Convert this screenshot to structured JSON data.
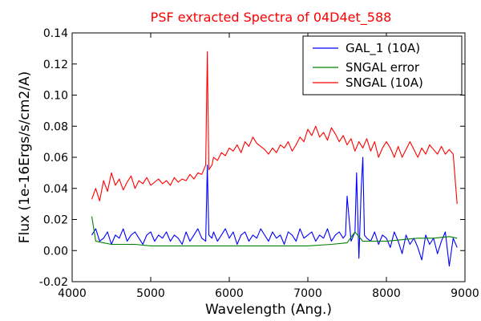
{
  "chart_data": {
    "type": "line",
    "title": "PSF extracted Spectra of 04D4et_588",
    "xlabel": "Wavelength (Ang.)",
    "ylabel": "Flux (1e-16Ergs/s/cm2/A)",
    "xlim": [
      4000,
      9000
    ],
    "ylim": [
      -0.02,
      0.14
    ],
    "xticks": [
      4000,
      5000,
      6000,
      7000,
      8000,
      9000
    ],
    "yticks": [
      -0.02,
      0.0,
      0.02,
      0.04,
      0.06,
      0.08,
      0.1,
      0.12,
      0.14
    ],
    "ytick_labels": [
      "-0.02",
      "0.00",
      "0.02",
      "0.04",
      "0.06",
      "0.08",
      "0.10",
      "0.12",
      "0.14"
    ],
    "legend_position": "top-right",
    "grid": false,
    "colors": {
      "title": "#ff0000",
      "frame": "#000000"
    },
    "series": [
      {
        "name": "GAL_1 (10A)",
        "color": "#0000ff",
        "x": [
          4250,
          4300,
          4350,
          4400,
          4450,
          4500,
          4550,
          4600,
          4650,
          4700,
          4750,
          4800,
          4850,
          4900,
          4950,
          5000,
          5050,
          5100,
          5150,
          5200,
          5250,
          5300,
          5350,
          5400,
          5450,
          5500,
          5550,
          5600,
          5650,
          5700,
          5720,
          5740,
          5780,
          5800,
          5850,
          5900,
          5950,
          6000,
          6050,
          6100,
          6150,
          6200,
          6250,
          6300,
          6350,
          6400,
          6450,
          6500,
          6550,
          6600,
          6650,
          6700,
          6750,
          6800,
          6850,
          6900,
          6950,
          7000,
          7050,
          7100,
          7150,
          7200,
          7250,
          7300,
          7350,
          7400,
          7450,
          7480,
          7500,
          7550,
          7600,
          7620,
          7650,
          7680,
          7700,
          7720,
          7750,
          7800,
          7850,
          7900,
          7950,
          8000,
          8050,
          8100,
          8150,
          8200,
          8250,
          8300,
          8350,
          8400,
          8450,
          8500,
          8550,
          8600,
          8650,
          8700,
          8750,
          8800,
          8850,
          8900
        ],
        "y": [
          0.01,
          0.014,
          0.006,
          0.008,
          0.012,
          0.004,
          0.01,
          0.008,
          0.014,
          0.006,
          0.01,
          0.012,
          0.008,
          0.004,
          0.01,
          0.012,
          0.006,
          0.01,
          0.008,
          0.012,
          0.006,
          0.01,
          0.008,
          0.004,
          0.012,
          0.006,
          0.01,
          0.014,
          0.008,
          0.006,
          0.055,
          0.01,
          0.008,
          0.012,
          0.006,
          0.01,
          0.014,
          0.008,
          0.012,
          0.004,
          0.01,
          0.012,
          0.006,
          0.01,
          0.008,
          0.014,
          0.01,
          0.006,
          0.012,
          0.008,
          0.01,
          0.004,
          0.012,
          0.01,
          0.006,
          0.014,
          0.008,
          0.01,
          0.012,
          0.006,
          0.01,
          0.008,
          0.014,
          0.006,
          0.01,
          0.012,
          0.008,
          0.01,
          0.035,
          0.006,
          0.012,
          0.05,
          -0.005,
          0.04,
          0.06,
          0.01,
          0.008,
          0.006,
          0.012,
          0.004,
          0.01,
          0.008,
          0.002,
          0.012,
          0.006,
          -0.002,
          0.01,
          0.004,
          0.008,
          0.002,
          -0.006,
          0.01,
          0.004,
          0.008,
          -0.002,
          0.006,
          0.012,
          -0.01,
          0.008,
          0.002
        ]
      },
      {
        "name": "SNGAL error",
        "color": "#008000",
        "x": [
          4250,
          4300,
          4400,
          4500,
          4600,
          4800,
          5000,
          5200,
          5500,
          6000,
          6500,
          7000,
          7300,
          7500,
          7600,
          7700,
          7800,
          8000,
          8200,
          8400,
          8600,
          8800,
          8900
        ],
        "y": [
          0.022,
          0.006,
          0.005,
          0.004,
          0.004,
          0.004,
          0.003,
          0.003,
          0.003,
          0.003,
          0.003,
          0.003,
          0.004,
          0.005,
          0.012,
          0.006,
          0.006,
          0.006,
          0.007,
          0.008,
          0.008,
          0.009,
          0.008
        ]
      },
      {
        "name": "SNGAL (10A)",
        "color": "#ff0000",
        "x": [
          4250,
          4300,
          4350,
          4400,
          4450,
          4500,
          4550,
          4600,
          4650,
          4700,
          4750,
          4800,
          4850,
          4900,
          4950,
          5000,
          5050,
          5100,
          5150,
          5200,
          5250,
          5300,
          5350,
          5400,
          5450,
          5500,
          5550,
          5600,
          5650,
          5700,
          5720,
          5740,
          5780,
          5800,
          5850,
          5900,
          5950,
          6000,
          6050,
          6100,
          6150,
          6200,
          6250,
          6300,
          6350,
          6400,
          6450,
          6500,
          6550,
          6600,
          6650,
          6700,
          6750,
          6800,
          6850,
          6900,
          6950,
          7000,
          7050,
          7100,
          7150,
          7200,
          7250,
          7300,
          7350,
          7400,
          7450,
          7500,
          7550,
          7600,
          7650,
          7700,
          7750,
          7800,
          7850,
          7900,
          7950,
          8000,
          8050,
          8100,
          8150,
          8200,
          8250,
          8300,
          8350,
          8400,
          8450,
          8500,
          8550,
          8600,
          8650,
          8700,
          8750,
          8800,
          8850,
          8900
        ],
        "y": [
          0.033,
          0.04,
          0.032,
          0.045,
          0.038,
          0.05,
          0.042,
          0.046,
          0.039,
          0.044,
          0.048,
          0.04,
          0.045,
          0.043,
          0.047,
          0.042,
          0.044,
          0.046,
          0.043,
          0.045,
          0.042,
          0.047,
          0.044,
          0.046,
          0.045,
          0.049,
          0.046,
          0.05,
          0.049,
          0.055,
          0.128,
          0.052,
          0.055,
          0.06,
          0.058,
          0.063,
          0.061,
          0.066,
          0.064,
          0.068,
          0.063,
          0.07,
          0.067,
          0.073,
          0.069,
          0.067,
          0.065,
          0.062,
          0.066,
          0.063,
          0.068,
          0.066,
          0.07,
          0.064,
          0.068,
          0.073,
          0.07,
          0.078,
          0.074,
          0.08,
          0.073,
          0.076,
          0.071,
          0.079,
          0.075,
          0.07,
          0.074,
          0.068,
          0.072,
          0.064,
          0.07,
          0.066,
          0.072,
          0.064,
          0.07,
          0.06,
          0.066,
          0.07,
          0.066,
          0.06,
          0.067,
          0.06,
          0.065,
          0.07,
          0.065,
          0.06,
          0.066,
          0.062,
          0.068,
          0.065,
          0.062,
          0.067,
          0.062,
          0.065,
          0.062,
          0.03
        ]
      }
    ]
  }
}
